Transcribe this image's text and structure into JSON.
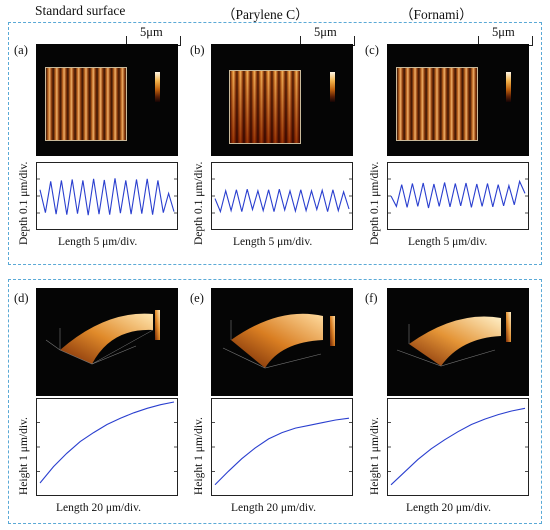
{
  "column_titles": [
    "Standard surface",
    "（Parylene C）",
    "（Fornami）"
  ],
  "panel_labels": [
    "(a)",
    "(b)",
    "(c)",
    "(d)",
    "(e)",
    "(f)"
  ],
  "scale_bar": "5μm",
  "top_profile": {
    "ylabel": "Depth 0.1 μm/div.",
    "xlabel": "Length 5 μm/div."
  },
  "bottom_profile": {
    "ylabel": "Height 1 μm/div.",
    "xlabel": "Length 20 μm/div."
  },
  "colors": {
    "trace": "#2a3fcf",
    "group_border": "#5aa9d6",
    "afm_dark": "#050505"
  },
  "chart_data": [
    {
      "type": "line",
      "panel": "a",
      "x": [
        0,
        1,
        2,
        3,
        4,
        5,
        6,
        7,
        8,
        9,
        10,
        11,
        12,
        13,
        14,
        15,
        16,
        17,
        18,
        19,
        20,
        21,
        22,
        23,
        24,
        25
      ],
      "y": [
        0.62,
        0.18,
        0.78,
        0.15,
        0.8,
        0.14,
        0.82,
        0.16,
        0.8,
        0.13,
        0.83,
        0.15,
        0.81,
        0.14,
        0.84,
        0.17,
        0.8,
        0.15,
        0.82,
        0.16,
        0.83,
        0.14,
        0.8,
        0.18,
        0.55,
        0.2
      ]
    },
    {
      "type": "line",
      "panel": "b",
      "x": [
        0,
        1,
        2,
        3,
        4,
        5,
        6,
        7,
        8,
        9,
        10,
        11,
        12,
        13,
        14,
        15,
        16,
        17,
        18,
        19,
        20,
        21,
        22,
        23,
        24,
        25
      ],
      "y": [
        0.45,
        0.2,
        0.6,
        0.22,
        0.62,
        0.2,
        0.63,
        0.24,
        0.6,
        0.22,
        0.62,
        0.2,
        0.63,
        0.23,
        0.6,
        0.21,
        0.62,
        0.22,
        0.6,
        0.24,
        0.61,
        0.2,
        0.62,
        0.22,
        0.58,
        0.25
      ]
    },
    {
      "type": "line",
      "panel": "c",
      "x": [
        0,
        1,
        2,
        3,
        4,
        5,
        6,
        7,
        8,
        9,
        10,
        11,
        12,
        13,
        14,
        15,
        16,
        17,
        18,
        19,
        20,
        21,
        22,
        23,
        24,
        25
      ],
      "y": [
        0.5,
        0.3,
        0.72,
        0.28,
        0.74,
        0.3,
        0.75,
        0.27,
        0.73,
        0.3,
        0.76,
        0.29,
        0.74,
        0.31,
        0.75,
        0.28,
        0.73,
        0.3,
        0.74,
        0.29,
        0.72,
        0.31,
        0.7,
        0.33,
        0.78,
        0.55
      ]
    },
    {
      "type": "line",
      "panel": "d",
      "x": [
        0,
        1,
        2,
        3,
        4,
        5,
        6,
        7,
        8,
        9,
        10
      ],
      "y": [
        0.1,
        0.28,
        0.43,
        0.56,
        0.66,
        0.75,
        0.82,
        0.88,
        0.93,
        0.97,
        1.0
      ]
    },
    {
      "type": "line",
      "panel": "e",
      "x": [
        0,
        1,
        2,
        3,
        4,
        5,
        6,
        7,
        8,
        9,
        10
      ],
      "y": [
        0.08,
        0.23,
        0.37,
        0.49,
        0.59,
        0.66,
        0.71,
        0.74,
        0.77,
        0.8,
        0.82
      ]
    },
    {
      "type": "line",
      "panel": "f",
      "x": [
        0,
        1,
        2,
        3,
        4,
        5,
        6,
        7,
        8,
        9,
        10
      ],
      "y": [
        0.08,
        0.22,
        0.36,
        0.48,
        0.58,
        0.67,
        0.75,
        0.81,
        0.86,
        0.9,
        0.93
      ]
    }
  ]
}
